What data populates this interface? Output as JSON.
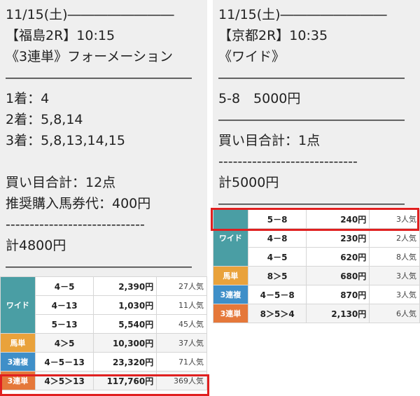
{
  "left": {
    "lines": [
      "11/15(土)――――――――",
      "【福島2R】10:15",
      "《3連単》フォーメーション",
      "――――――――――――――",
      "1着：4",
      "2着：5,8,14",
      "3着：5,8,13,14,15",
      "",
      "買い目合計：12点",
      "推奨購入馬券代：400円",
      "-----------------------------",
      "計4800円",
      "――――――――――――――"
    ],
    "payouts": {
      "wide": {
        "label": "ワイド",
        "rows": [
          {
            "combo": "4－5",
            "amount": "2,390円",
            "pop": "27人気"
          },
          {
            "combo": "4－13",
            "amount": "1,030円",
            "pop": "11人気"
          },
          {
            "combo": "5－13",
            "amount": "5,540円",
            "pop": "45人気"
          }
        ]
      },
      "umatan": {
        "label": "馬単",
        "combo": "4＞5",
        "amount": "10,300円",
        "pop": "37人気"
      },
      "sanrenpuku": {
        "label": "3連複",
        "combo": "4－5－13",
        "amount": "23,320円",
        "pop": "71人気"
      },
      "sanrentan": {
        "label": "3連単",
        "combo": "4＞5＞13",
        "amount": "117,760円",
        "pop": "369人気"
      }
    }
  },
  "right": {
    "lines": [
      "11/15(土)――――――――",
      "【京都2R】10:35",
      "《ワイド》",
      "――――――――――――――",
      "5-8　5000円",
      "――――――――――――――",
      "買い目合計：1点",
      "-----------------------------",
      "計5000円",
      "――――――――――――――"
    ],
    "payouts": {
      "wide": {
        "label": "ワイド",
        "rows": [
          {
            "combo": "5－8",
            "amount": "240円",
            "pop": "3人気"
          },
          {
            "combo": "4－8",
            "amount": "230円",
            "pop": "2人気"
          },
          {
            "combo": "4－5",
            "amount": "620円",
            "pop": "8人気"
          }
        ]
      },
      "umatan": {
        "label": "馬単",
        "combo": "8＞5",
        "amount": "680円",
        "pop": "3人気"
      },
      "sanrenpuku": {
        "label": "3連複",
        "combo": "4－5－8",
        "amount": "870円",
        "pop": "3人気"
      },
      "sanrentan": {
        "label": "3連単",
        "combo": "8＞5＞4",
        "amount": "2,130円",
        "pop": "6人気"
      }
    }
  },
  "colors": {
    "wide": "#4a9ea4",
    "umatan": "#e9a23b",
    "sanrenpuku": "#3f8fc8",
    "sanrentan": "#e5783a",
    "highlight": "#e02020"
  }
}
